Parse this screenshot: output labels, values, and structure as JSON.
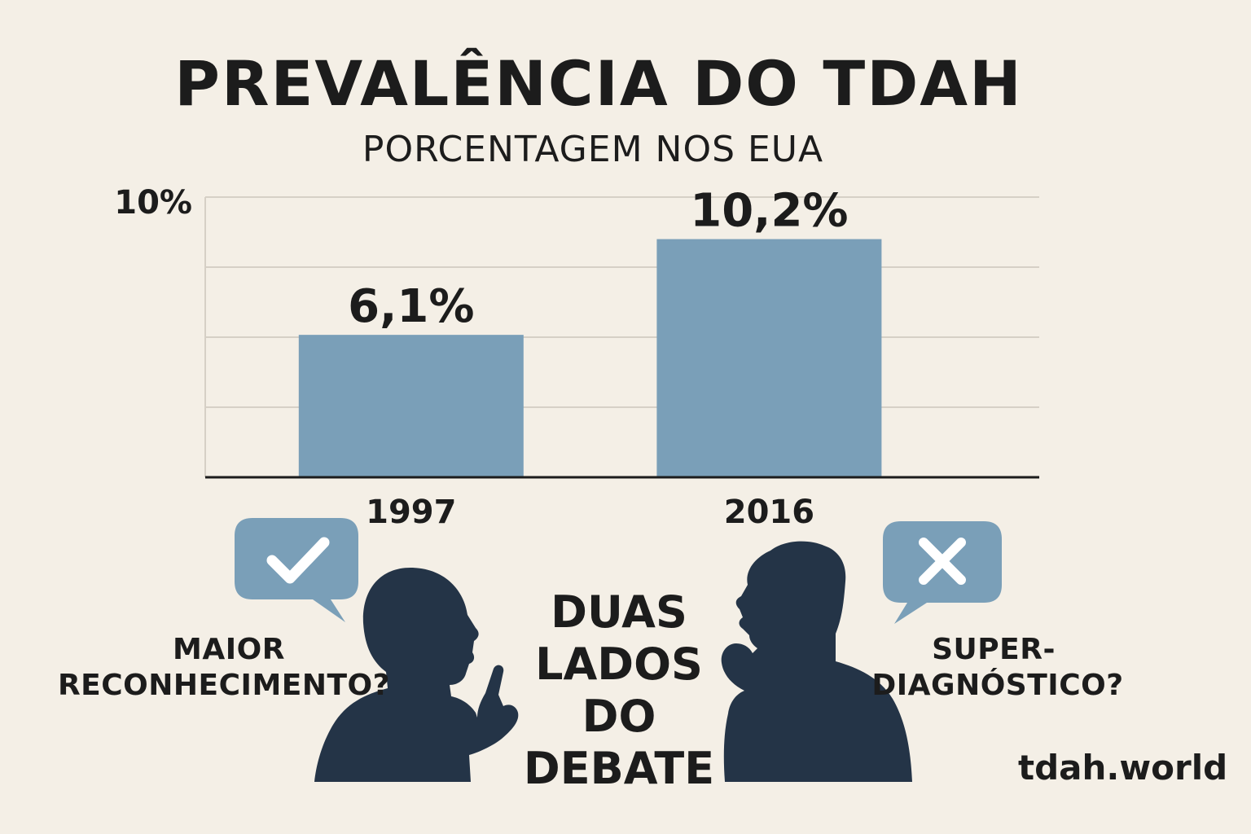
{
  "chart_data": {
    "type": "bar",
    "title": "PREVALÊNCIA DO TDAH",
    "subtitle": "PORCENTAGEM NOS EUA",
    "categories": [
      "1997",
      "2016"
    ],
    "values": [
      6.1,
      10.2
    ],
    "value_labels": [
      "6,1%",
      "10,2%"
    ],
    "y_tick_label": "10%",
    "ylim": [
      0,
      12
    ],
    "grid": true,
    "bar_color": "#7a9fb8"
  },
  "debate": {
    "left_label_line1": "MAIOR",
    "left_label_line2": "RECONHECIMENTO?",
    "right_label_line1": "SUPER-",
    "right_label_line2": "DIAGNÓSTICO?",
    "center_lines": [
      "DUAS",
      "LADOS",
      "DO",
      "DEBATE"
    ],
    "left_icon": "check-icon",
    "right_icon": "x-icon",
    "bubble_color": "#7a9fb8",
    "silhouette_color": "#243447"
  },
  "footer": {
    "site": "tdah.world"
  }
}
